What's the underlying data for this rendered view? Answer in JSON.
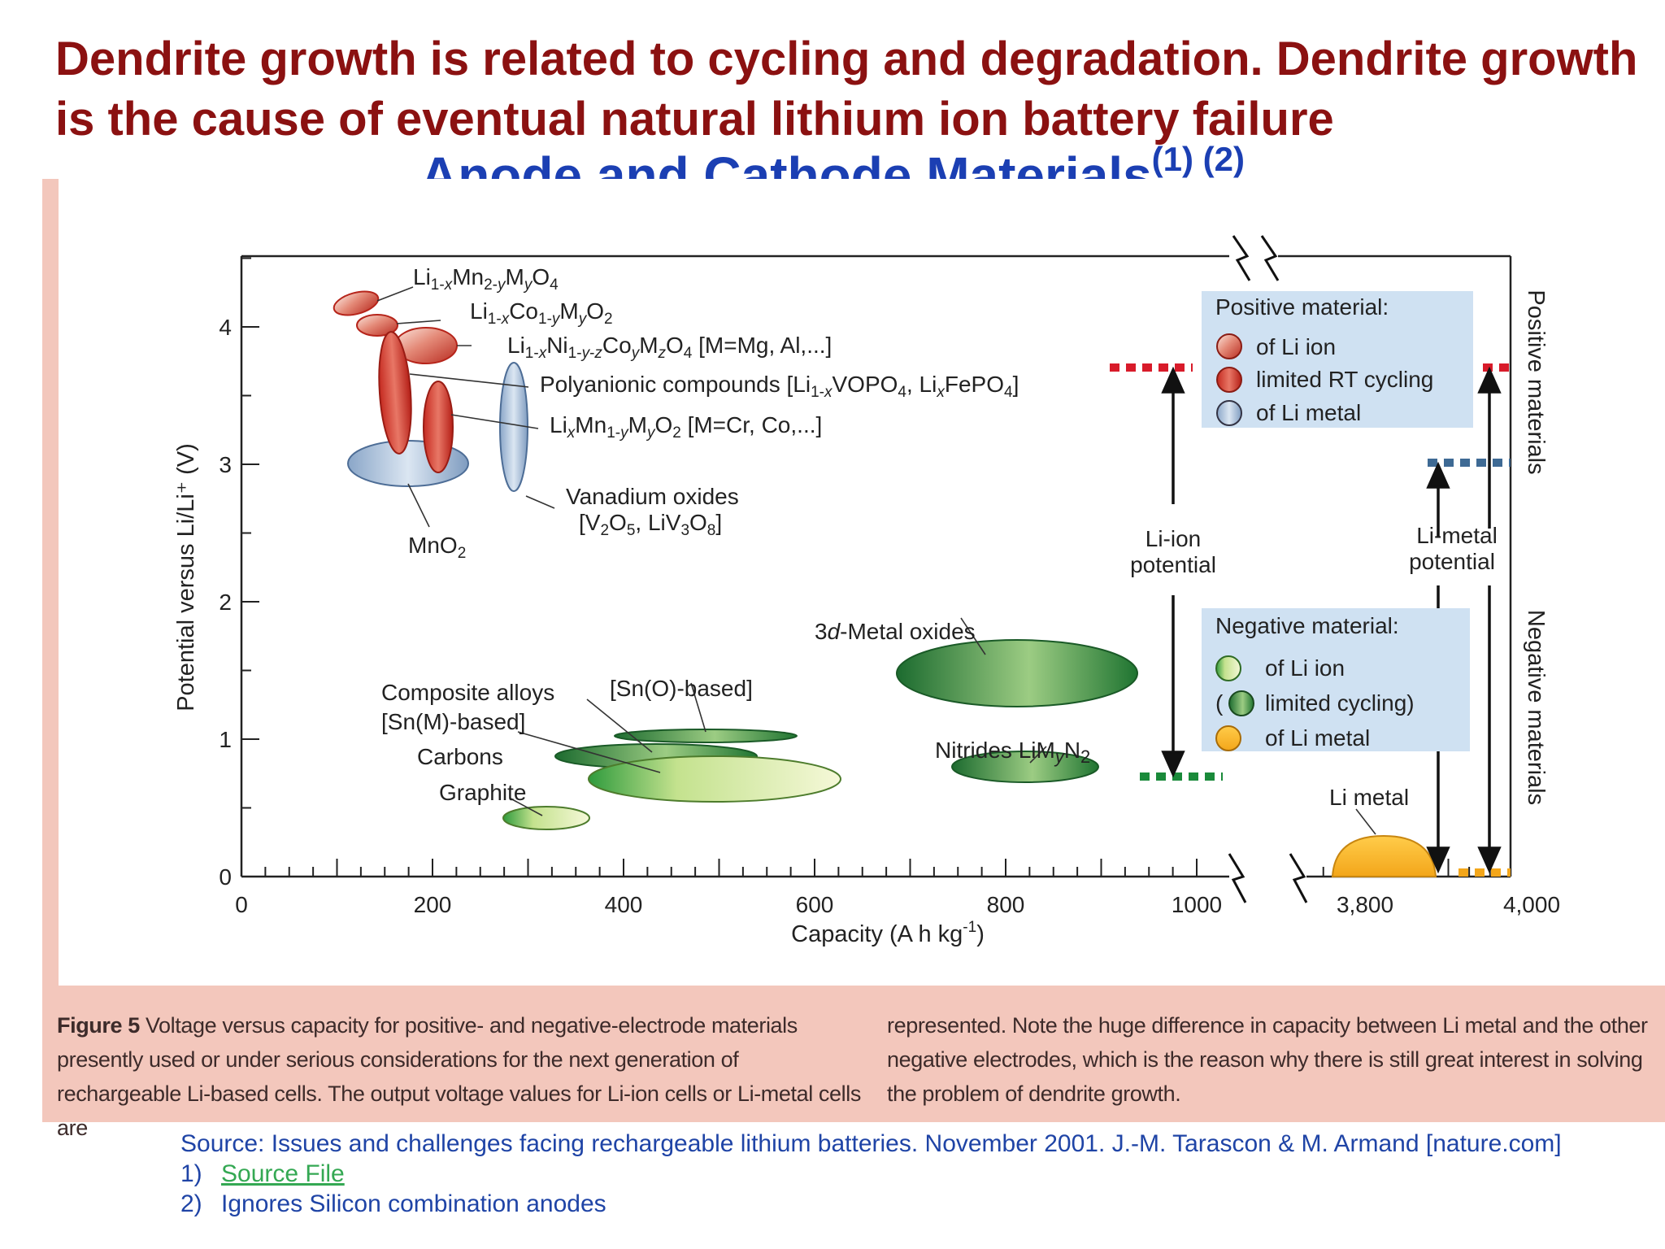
{
  "slide": {
    "title": "Dendrite growth is related to cycling and degradation. Dendrite growth is the cause of eventual natural lithium ion battery failure",
    "subtitle": "Anode and Cathode Materials",
    "subtitle_refs": "(1) (2)"
  },
  "caption": {
    "label": "Figure 5",
    "text_left": "Voltage versus capacity for positive- and negative-electrode materials presently used or under serious considerations for the next generation of rechargeable Li-based cells. The output voltage values for Li-ion cells or Li-metal cells are",
    "text_right": "represented. Note the huge difference in capacity between Li metal and the other negative electrodes, which is the reason why there is still great interest in solving the problem of dendrite growth."
  },
  "source": {
    "text": "Source: Issues and challenges facing rechargeable lithium batteries. November 2001. J.-M. Tarascon & M. Armand [nature.com]",
    "item1_num": "1)",
    "item1_link": "Source File",
    "item2_num": "2)",
    "item2_text": "Ignores Silicon combination anodes"
  },
  "chart_data": {
    "type": "scatter",
    "xlabel": "Capacity  (A h kg",
    "xlabel_sup": "-1",
    "xlabel_end": ")",
    "ylabel": "Potential versus Li/Li⁺ (V)",
    "x_ticks": [
      "0",
      "200",
      "400",
      "600",
      "800",
      "1000",
      "3,800",
      "4,000"
    ],
    "y_ticks": [
      "0",
      "1",
      "2",
      "3",
      "4"
    ],
    "xlim": [
      0,
      1000
    ],
    "xlim_broken": [
      3700,
      4000
    ],
    "ylim": [
      0,
      4.5
    ],
    "right_labels": {
      "positive": "Positive materials",
      "negative": "Negative materials"
    },
    "legend_positive": {
      "title": "Positive material:",
      "items": [
        "of Li ion",
        "limited RT cycling",
        "of Li metal"
      ]
    },
    "legend_negative": {
      "title": "Negative material:",
      "items": [
        "of Li ion",
        "limited cycling)",
        "of Li metal"
      ],
      "item2_prefix": "("
    },
    "potential_labels": {
      "li_ion_1": "Li-ion",
      "li_ion_2": "potential",
      "li_metal_1": "Li-metal",
      "li_metal_2": "potential"
    },
    "regions": [
      {
        "name": "LiMn2O4",
        "kind": "positive-li-ion",
        "x": [
          110,
          140
        ],
        "y": [
          4.0,
          4.2
        ]
      },
      {
        "name": "LiCoO2",
        "kind": "positive-li-ion",
        "x": [
          130,
          165
        ],
        "y": [
          3.9,
          4.1
        ]
      },
      {
        "name": "LiNiCoMO4",
        "kind": "positive-li-ion",
        "x": [
          150,
          220
        ],
        "y": [
          3.75,
          4.05
        ]
      },
      {
        "name": "Polyanionic compounds",
        "kind": "positive-limited",
        "x": [
          140,
          175
        ],
        "y": [
          3.1,
          4.05
        ]
      },
      {
        "name": "LiMnMO2",
        "kind": "positive-limited",
        "x": [
          185,
          220
        ],
        "y": [
          2.95,
          3.6
        ]
      },
      {
        "name": "MnO2",
        "kind": "positive-li-metal",
        "x": [
          110,
          240
        ],
        "y": [
          2.8,
          3.1
        ]
      },
      {
        "name": "Vanadium oxides",
        "kind": "positive-li-metal",
        "x": [
          270,
          300
        ],
        "y": [
          2.65,
          3.6
        ]
      },
      {
        "name": "3d-Metal oxides",
        "kind": "negative-limited",
        "x": [
          645,
          975
        ],
        "y": [
          1.0,
          1.5
        ]
      },
      {
        "name": "[Sn(O)-based]",
        "kind": "negative-limited",
        "x": [
          420,
          665
        ],
        "y": [
          0.74,
          0.82
        ]
      },
      {
        "name": "Composite alloys [Sn(M)-based]",
        "kind": "negative-limited",
        "x": [
          355,
          630
        ],
        "y": [
          0.52,
          0.7
        ]
      },
      {
        "name": "Carbons",
        "kind": "negative-li-ion",
        "x": [
          435,
          780
        ],
        "y": [
          0.22,
          0.58
        ]
      },
      {
        "name": "Graphite",
        "kind": "negative-li-ion",
        "x": [
          290,
          410
        ],
        "y": [
          0.1,
          0.27
        ]
      },
      {
        "name": "Nitrides LiMyN2",
        "kind": "negative-limited",
        "x": [
          795,
          995
        ],
        "y": [
          0.4,
          0.64
        ]
      },
      {
        "name": "Li metal",
        "kind": "negative-li-metal",
        "x": [
          3800,
          3960
        ],
        "y": [
          0.0,
          0.2
        ]
      }
    ],
    "potential_levels": {
      "li_ion_positive": 3.7,
      "li_ion_negative": 0.7,
      "li_metal_positive": 3.0,
      "li_metal_negative": 0.0
    }
  }
}
